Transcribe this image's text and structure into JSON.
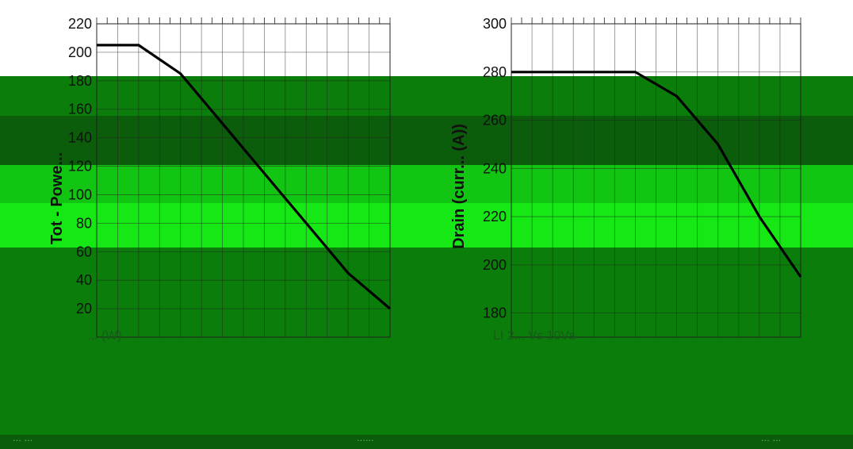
{
  "chart_data": [
    {
      "type": "line",
      "ylabel": "Tot - Powe...",
      "y_ticks": [
        20,
        40,
        60,
        80,
        100,
        120,
        140,
        160,
        180,
        200,
        220
      ],
      "ylim": [
        0,
        220
      ],
      "annotation": "... (W)",
      "series": [
        {
          "values": [
            205,
            205,
            185,
            150,
            115,
            80,
            45,
            20
          ]
        }
      ]
    },
    {
      "type": "line",
      "ylabel": "Drain (curr... (A))",
      "y_ticks": [
        180,
        200,
        220,
        240,
        260,
        280,
        300
      ],
      "ylim": [
        170,
        300
      ],
      "annotation": "LI 2... Vs 10Vs",
      "series": [
        {
          "values": [
            280,
            280,
            280,
            280,
            270,
            250,
            220,
            195
          ]
        }
      ]
    }
  ],
  "footer": {
    "left": "... ...",
    "center": "......",
    "right": "... ..."
  },
  "colors": {
    "band_dark": "#0b5c0b",
    "band_mid": "#0a7d0a",
    "band_bright": "#12c512",
    "band_lime": "#15e815",
    "line": "#000000",
    "grid": "#222222"
  }
}
